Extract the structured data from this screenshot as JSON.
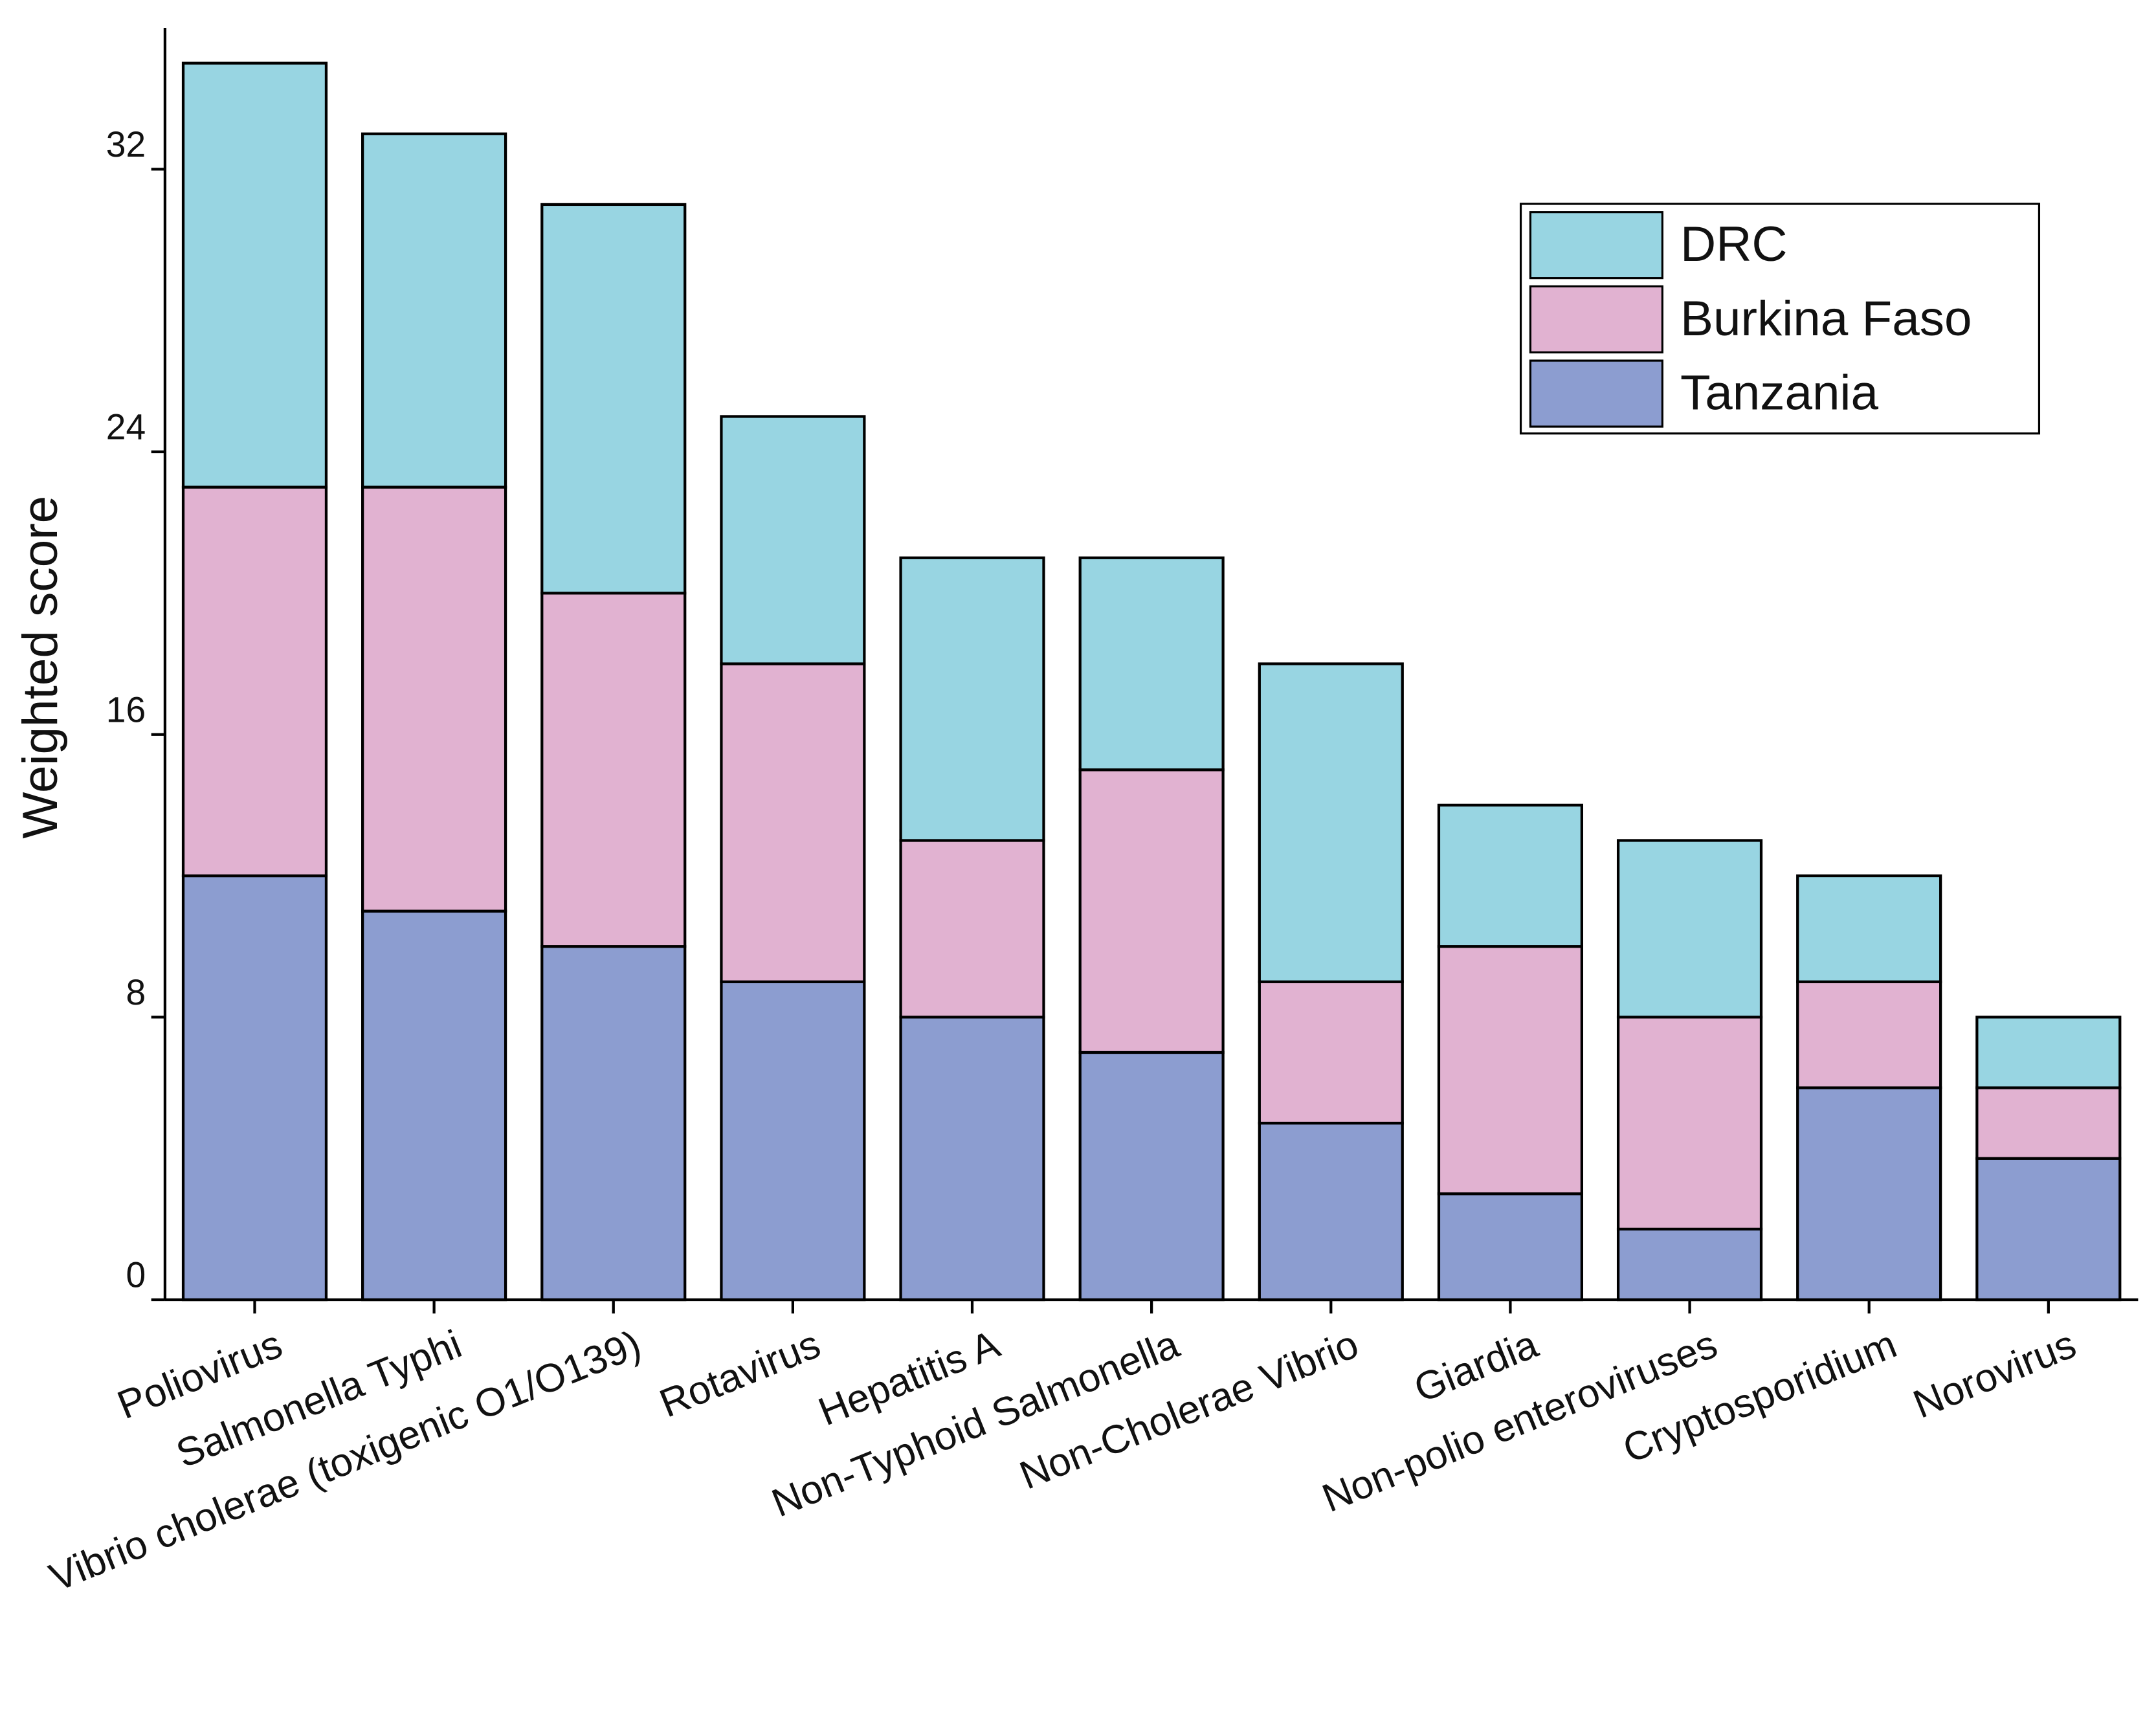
{
  "chart_data": {
    "type": "stacked_bar",
    "y_label": "Weighted score",
    "categories": [
      "Poliovirus",
      "Salmonella Typhi",
      "Vibrio cholerae (toxigenic O1/O139)",
      "Rotavirus",
      "Hepatitis A",
      "Non-Typhoid Salmonella",
      "Non-Cholerae Vibrio",
      "Giardia",
      "Non-polio enteroviruses",
      "Cryptosporidium",
      "Norovirus"
    ],
    "series": [
      {
        "name": "Tanzania",
        "color": "#8c9dd0",
        "values": [
          12,
          11,
          10,
          9,
          8,
          7,
          5,
          3,
          2,
          6,
          4
        ]
      },
      {
        "name": "Burkina Faso",
        "color": "#e1b2d1",
        "values": [
          11,
          12,
          10,
          9,
          5,
          8,
          4,
          7,
          6,
          3,
          2
        ]
      },
      {
        "name": "DRC",
        "color": "#98d5e2",
        "values": [
          12,
          10,
          11,
          7,
          8,
          6,
          9,
          4,
          5,
          3,
          2
        ]
      }
    ],
    "ylim": [
      0,
      36
    ],
    "yticks": [
      0,
      8,
      16,
      24,
      32
    ],
    "legend": "upper right"
  }
}
